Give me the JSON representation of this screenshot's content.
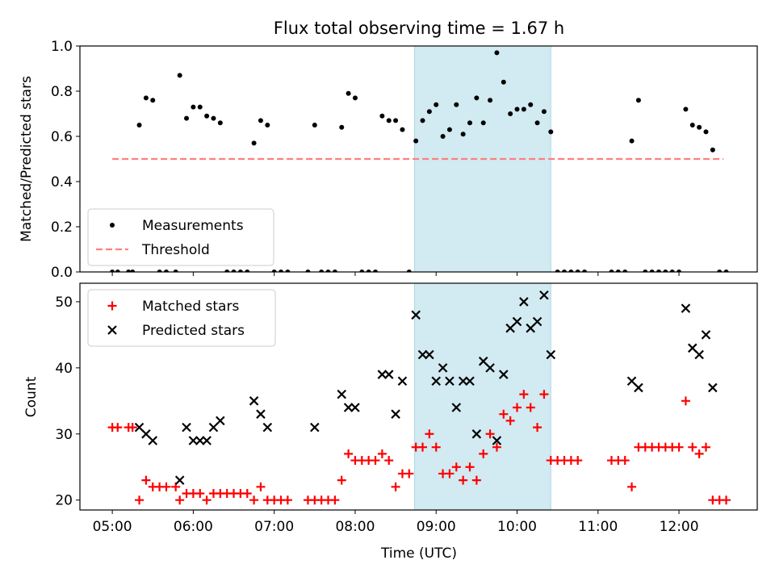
{
  "chart_data": [
    {
      "type": "scatter",
      "title": "Flux total observing time = 1.67 h",
      "xlabel": "",
      "ylabel": "Matched/Predicted stars",
      "ylim": [
        0,
        1.0
      ],
      "xlim": [
        "04:36",
        "12:58"
      ],
      "yticks": [
        "0.0",
        "0.2",
        "0.4",
        "0.6",
        "0.8",
        "1.0"
      ],
      "shaded_interval": {
        "start": "08:44",
        "end": "10:25",
        "color": "#add8e6"
      },
      "legend": {
        "position": "lower-left",
        "entries": [
          "Measurements",
          "Threshold"
        ]
      },
      "series": [
        {
          "name": "Measurements",
          "marker": "dot",
          "color": "#000000",
          "points": [
            [
              "05:00",
              0
            ],
            [
              "05:04",
              0
            ],
            [
              "05:12",
              0
            ],
            [
              "05:15",
              0
            ],
            [
              "05:20",
              0.65
            ],
            [
              "05:25",
              0.77
            ],
            [
              "05:30",
              0.76
            ],
            [
              "05:35",
              0
            ],
            [
              "05:40",
              0
            ],
            [
              "05:47",
              0
            ],
            [
              "05:50",
              0.87
            ],
            [
              "05:55",
              0.68
            ],
            [
              "06:00",
              0.73
            ],
            [
              "06:05",
              0.73
            ],
            [
              "06:10",
              0.69
            ],
            [
              "06:15",
              0.68
            ],
            [
              "06:20",
              0.66
            ],
            [
              "06:25",
              0
            ],
            [
              "06:30",
              0
            ],
            [
              "06:35",
              0
            ],
            [
              "06:40",
              0
            ],
            [
              "06:45",
              0.57
            ],
            [
              "06:50",
              0.67
            ],
            [
              "06:55",
              0.65
            ],
            [
              "07:00",
              0
            ],
            [
              "07:05",
              0
            ],
            [
              "07:10",
              0
            ],
            [
              "07:25",
              0
            ],
            [
              "07:30",
              0.65
            ],
            [
              "07:35",
              0
            ],
            [
              "07:40",
              0
            ],
            [
              "07:45",
              0
            ],
            [
              "07:50",
              0.64
            ],
            [
              "07:55",
              0.79
            ],
            [
              "08:00",
              0.77
            ],
            [
              "08:05",
              0
            ],
            [
              "08:10",
              0
            ],
            [
              "08:15",
              0
            ],
            [
              "08:20",
              0.69
            ],
            [
              "08:25",
              0.67
            ],
            [
              "08:30",
              0.67
            ],
            [
              "08:35",
              0.63
            ],
            [
              "08:40",
              0
            ],
            [
              "08:45",
              0.58
            ],
            [
              "08:50",
              0.67
            ],
            [
              "08:55",
              0.71
            ],
            [
              "09:00",
              0.74
            ],
            [
              "09:05",
              0.6
            ],
            [
              "09:10",
              0.63
            ],
            [
              "09:15",
              0.74
            ],
            [
              "09:20",
              0.61
            ],
            [
              "09:25",
              0.66
            ],
            [
              "09:30",
              0.77
            ],
            [
              "09:35",
              0.66
            ],
            [
              "09:40",
              0.76
            ],
            [
              "09:45",
              0.97
            ],
            [
              "09:50",
              0.84
            ],
            [
              "09:55",
              0.7
            ],
            [
              "10:00",
              0.72
            ],
            [
              "10:05",
              0.72
            ],
            [
              "10:10",
              0.74
            ],
            [
              "10:15",
              0.66
            ],
            [
              "10:20",
              0.71
            ],
            [
              "10:25",
              0.62
            ],
            [
              "10:30",
              0
            ],
            [
              "10:35",
              0
            ],
            [
              "10:40",
              0
            ],
            [
              "10:45",
              0
            ],
            [
              "10:50",
              0
            ],
            [
              "11:10",
              0
            ],
            [
              "11:15",
              0
            ],
            [
              "11:20",
              0
            ],
            [
              "11:25",
              0.58
            ],
            [
              "11:30",
              0.76
            ],
            [
              "11:35",
              0
            ],
            [
              "11:40",
              0
            ],
            [
              "11:45",
              0
            ],
            [
              "11:50",
              0
            ],
            [
              "11:55",
              0
            ],
            [
              "12:00",
              0
            ],
            [
              "12:05",
              0.72
            ],
            [
              "12:10",
              0.65
            ],
            [
              "12:15",
              0.64
            ],
            [
              "12:20",
              0.62
            ],
            [
              "12:25",
              0.54
            ],
            [
              "12:30",
              0
            ],
            [
              "12:35",
              0
            ]
          ]
        },
        {
          "name": "Threshold",
          "marker": "dashed-line",
          "color": "#ff7f7f",
          "points": [
            [
              "05:00",
              0.5
            ],
            [
              "12:33",
              0.5
            ]
          ]
        }
      ]
    },
    {
      "type": "scatter",
      "title": "",
      "xlabel": "Time (UTC)",
      "ylabel": "Count",
      "ylim": [
        18.5,
        52.8
      ],
      "xlim": [
        "04:36",
        "12:58"
      ],
      "yticks": [
        "20",
        "30",
        "40",
        "50"
      ],
      "xticks": [
        "05:00",
        "06:00",
        "07:00",
        "08:00",
        "09:00",
        "10:00",
        "11:00",
        "12:00"
      ],
      "shaded_interval": {
        "start": "08:44",
        "end": "10:25",
        "color": "#add8e6"
      },
      "legend": {
        "position": "upper-left",
        "entries": [
          "Matched stars",
          "Predicted stars"
        ]
      },
      "series": [
        {
          "name": "Matched stars",
          "marker": "plus",
          "color": "#ff0000",
          "points": [
            [
              "05:00",
              31
            ],
            [
              "05:04",
              31
            ],
            [
              "05:12",
              31
            ],
            [
              "05:15",
              31
            ],
            [
              "05:20",
              20
            ],
            [
              "05:25",
              23
            ],
            [
              "05:30",
              22
            ],
            [
              "05:35",
              22
            ],
            [
              "05:40",
              22
            ],
            [
              "05:47",
              22
            ],
            [
              "05:50",
              20
            ],
            [
              "05:55",
              21
            ],
            [
              "06:00",
              21
            ],
            [
              "06:05",
              21
            ],
            [
              "06:10",
              20
            ],
            [
              "06:15",
              21
            ],
            [
              "06:20",
              21
            ],
            [
              "06:25",
              21
            ],
            [
              "06:30",
              21
            ],
            [
              "06:35",
              21
            ],
            [
              "06:40",
              21
            ],
            [
              "06:45",
              20
            ],
            [
              "06:50",
              22
            ],
            [
              "06:55",
              20
            ],
            [
              "07:00",
              20
            ],
            [
              "07:05",
              20
            ],
            [
              "07:10",
              20
            ],
            [
              "07:25",
              20
            ],
            [
              "07:30",
              20
            ],
            [
              "07:35",
              20
            ],
            [
              "07:40",
              20
            ],
            [
              "07:45",
              20
            ],
            [
              "07:50",
              23
            ],
            [
              "07:55",
              27
            ],
            [
              "08:00",
              26
            ],
            [
              "08:05",
              26
            ],
            [
              "08:10",
              26
            ],
            [
              "08:15",
              26
            ],
            [
              "08:20",
              27
            ],
            [
              "08:25",
              26
            ],
            [
              "08:30",
              22
            ],
            [
              "08:35",
              24
            ],
            [
              "08:40",
              24
            ],
            [
              "08:45",
              28
            ],
            [
              "08:50",
              28
            ],
            [
              "08:55",
              30
            ],
            [
              "09:00",
              28
            ],
            [
              "09:05",
              24
            ],
            [
              "09:10",
              24
            ],
            [
              "09:15",
              25
            ],
            [
              "09:20",
              23
            ],
            [
              "09:25",
              25
            ],
            [
              "09:30",
              23
            ],
            [
              "09:35",
              27
            ],
            [
              "09:40",
              30
            ],
            [
              "09:45",
              28
            ],
            [
              "09:50",
              33
            ],
            [
              "09:55",
              32
            ],
            [
              "10:00",
              34
            ],
            [
              "10:05",
              36
            ],
            [
              "10:10",
              34
            ],
            [
              "10:15",
              31
            ],
            [
              "10:20",
              36
            ],
            [
              "10:25",
              26
            ],
            [
              "10:30",
              26
            ],
            [
              "10:35",
              26
            ],
            [
              "10:40",
              26
            ],
            [
              "10:45",
              26
            ],
            [
              "11:10",
              26
            ],
            [
              "11:15",
              26
            ],
            [
              "11:20",
              26
            ],
            [
              "11:25",
              22
            ],
            [
              "11:30",
              28
            ],
            [
              "11:35",
              28
            ],
            [
              "11:40",
              28
            ],
            [
              "11:45",
              28
            ],
            [
              "11:50",
              28
            ],
            [
              "11:55",
              28
            ],
            [
              "12:00",
              28
            ],
            [
              "12:05",
              35
            ],
            [
              "12:10",
              28
            ],
            [
              "12:15",
              27
            ],
            [
              "12:20",
              28
            ],
            [
              "12:25",
              20
            ],
            [
              "12:30",
              20
            ],
            [
              "12:35",
              20
            ]
          ]
        },
        {
          "name": "Predicted stars",
          "marker": "x",
          "color": "#000000",
          "points": [
            [
              "05:20",
              31
            ],
            [
              "05:25",
              30
            ],
            [
              "05:30",
              29
            ],
            [
              "05:50",
              23
            ],
            [
              "05:55",
              31
            ],
            [
              "06:00",
              29
            ],
            [
              "06:05",
              29
            ],
            [
              "06:10",
              29
            ],
            [
              "06:15",
              31
            ],
            [
              "06:20",
              32
            ],
            [
              "06:45",
              35
            ],
            [
              "06:50",
              33
            ],
            [
              "06:55",
              31
            ],
            [
              "07:30",
              31
            ],
            [
              "07:50",
              36
            ],
            [
              "07:55",
              34
            ],
            [
              "08:00",
              34
            ],
            [
              "08:20",
              39
            ],
            [
              "08:25",
              39
            ],
            [
              "08:30",
              33
            ],
            [
              "08:35",
              38
            ],
            [
              "08:45",
              48
            ],
            [
              "08:50",
              42
            ],
            [
              "08:55",
              42
            ],
            [
              "09:00",
              38
            ],
            [
              "09:05",
              40
            ],
            [
              "09:10",
              38
            ],
            [
              "09:15",
              34
            ],
            [
              "09:20",
              38
            ],
            [
              "09:25",
              38
            ],
            [
              "09:30",
              30
            ],
            [
              "09:35",
              41
            ],
            [
              "09:40",
              40
            ],
            [
              "09:45",
              29
            ],
            [
              "09:50",
              39
            ],
            [
              "09:55",
              46
            ],
            [
              "10:00",
              47
            ],
            [
              "10:05",
              50
            ],
            [
              "10:10",
              46
            ],
            [
              "10:15",
              47
            ],
            [
              "10:20",
              51
            ],
            [
              "10:25",
              42
            ],
            [
              "11:25",
              38
            ],
            [
              "11:30",
              37
            ],
            [
              "12:05",
              49
            ],
            [
              "12:10",
              43
            ],
            [
              "12:15",
              42
            ],
            [
              "12:20",
              45
            ],
            [
              "12:25",
              37
            ]
          ]
        }
      ]
    }
  ]
}
